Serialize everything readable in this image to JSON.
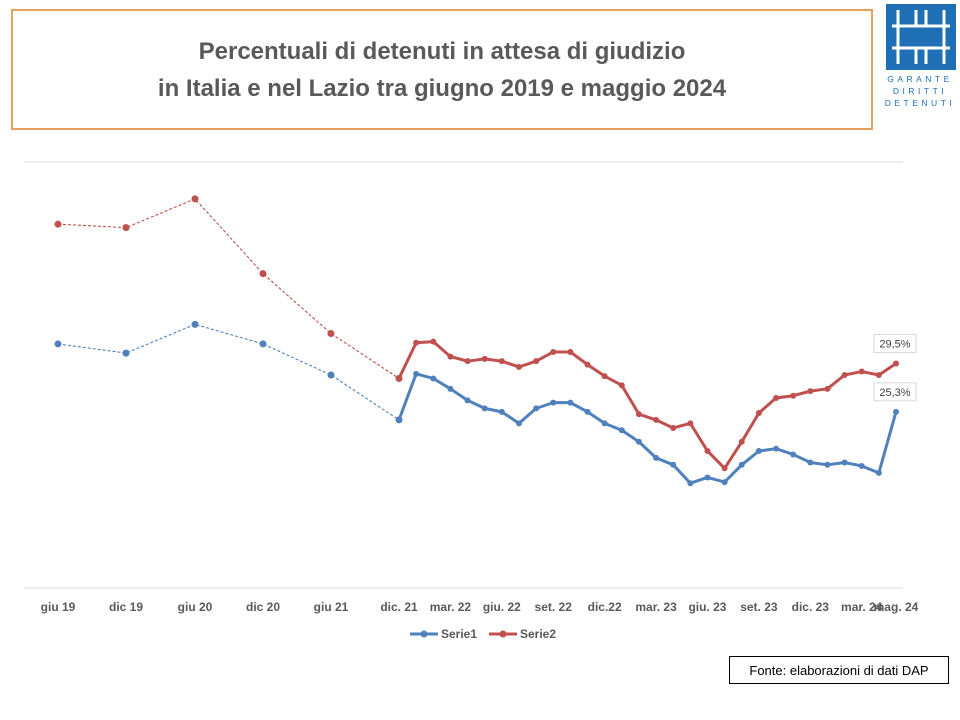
{
  "title": {
    "line1": "Percentuali di detenuti in attesa di giudizio",
    "line2": "in Italia e nel Lazio tra giugno 2019 e maggio 2024"
  },
  "logo": {
    "line1": "GARANTE",
    "line2": "DIRITTI",
    "line3": "DETENUTI"
  },
  "source": "Fonte: elaborazioni di dati DAP",
  "colors": {
    "serie1": "#4f81bd",
    "serie2": "#c0504d",
    "title_border": "#e8a05a",
    "logo": "#1f6fb5"
  },
  "chart_data": {
    "type": "line",
    "title": "Percentuali di detenuti in attesa di giudizio in Italia e nel Lazio tra giugno 2019 e maggio 2024",
    "xlabel": "",
    "ylabel": "",
    "ylim": [
      10,
      47
    ],
    "grid": "top line only",
    "legend": "bottom-center",
    "x_tick_labels": [
      "giu 19",
      "dic 19",
      "giu 20",
      "dic 20",
      "giu 21",
      "dic. 21",
      "mar. 22",
      "giu. 22",
      "set. 22",
      "dic.22",
      "mar. 23",
      "giu. 23",
      "set. 23",
      "dic. 23",
      "mar. 24",
      "mag. 24"
    ],
    "x": [
      "giu 19",
      "dic 19",
      "giu 20",
      "dic 20",
      "giu 21",
      "dic. 21",
      "gen. 22",
      "feb. 22",
      "mar. 22",
      "apr. 22",
      "mag. 22",
      "giu. 22",
      "lug. 22",
      "ago. 22",
      "set. 22",
      "ott. 22",
      "nov. 22",
      "dic.22",
      "gen. 23",
      "feb. 23",
      "mar. 23",
      "apr. 23",
      "mag. 23",
      "giu. 23",
      "lug. 23",
      "ago. 23",
      "set. 23",
      "ott. 23",
      "nov. 23",
      "dic. 23",
      "gen. 24",
      "feb. 24",
      "mar. 24",
      "apr. 24",
      "mag. 24"
    ],
    "series": [
      {
        "name": "Serie1",
        "values": [
          31.2,
          30.4,
          32.9,
          31.2,
          28.5,
          24.6,
          28.6,
          28.2,
          27.3,
          26.3,
          25.6,
          25.3,
          24.3,
          25.6,
          26.1,
          26.1,
          25.3,
          24.3,
          23.7,
          22.7,
          21.3,
          20.7,
          19.1,
          19.6,
          19.2,
          20.7,
          21.9,
          22.1,
          21.6,
          20.9,
          20.7,
          20.9,
          20.6,
          20.0,
          25.3
        ],
        "labels": {
          "34": "25,3%"
        }
      },
      {
        "name": "Serie2",
        "values": [
          41.6,
          41.3,
          43.8,
          37.3,
          32.1,
          28.2,
          31.3,
          31.4,
          30.1,
          29.7,
          29.9,
          29.7,
          29.2,
          29.7,
          30.5,
          30.5,
          29.4,
          28.4,
          27.6,
          25.1,
          24.6,
          23.9,
          24.3,
          21.9,
          20.4,
          22.7,
          25.2,
          26.5,
          26.7,
          27.1,
          27.3,
          28.5,
          28.8,
          28.5,
          29.5
        ],
        "labels": {
          "34": "29,5%"
        }
      }
    ]
  }
}
